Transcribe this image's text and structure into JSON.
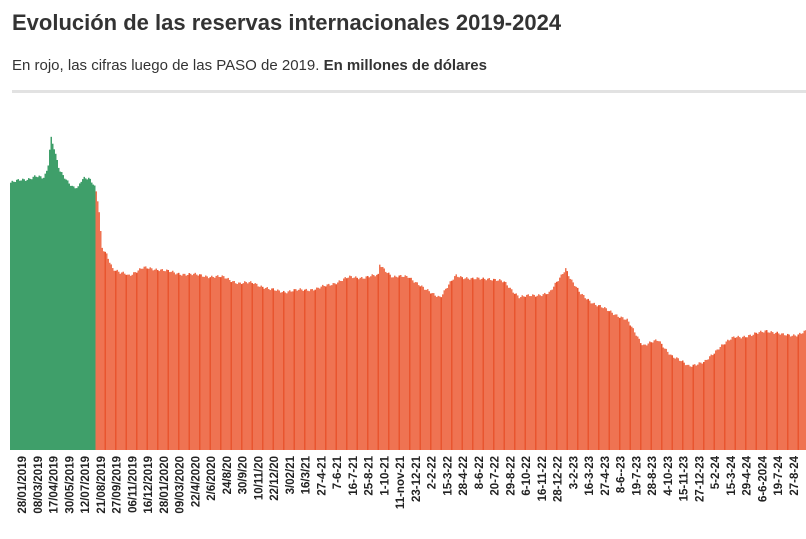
{
  "header": {
    "title": "Evolución de las reservas internacionales 2019-2024",
    "subtitle_plain": "En rojo, las cifras luego de las PASO de 2019.",
    "subtitle_bold": "En millones de dólares"
  },
  "colors": {
    "pre_paso": "#3f9f6a",
    "post_paso": "#ef7352",
    "post_paso_dark": "#e8552f",
    "rule": "#e2e2e2"
  },
  "chart_data": {
    "type": "bar",
    "title": "Evolución de las reservas internacionales 2019-2024",
    "ylabel": "En millones de dólares",
    "x_tick_labels": [
      "28/01/2019",
      "08/03/2019",
      "17/04/2019",
      "30/05/2019",
      "12/07/2019",
      "21/08/2019",
      "27/09/2019",
      "06/11/2019",
      "16/12/2019",
      "28/01/2020",
      "09/03/2020",
      "22/4/2020",
      "2/6/2020",
      "24/8/20",
      "30/9/20",
      "10/11/20",
      "22/12/20",
      "3/02/21",
      "16/3/21",
      "27-4-21",
      "7-6-21",
      "16-7-21",
      "25-8-21",
      "1-10-21",
      "11-nov-21",
      "23-12-21",
      "2-2-22",
      "15-3-22",
      "28-4-22",
      "8-6-22",
      "20-7-22",
      "29-8-22",
      "6-10-22",
      "16-11-22",
      "28-12-22",
      "3-2-23",
      "16-3-23",
      "27-4-23",
      "8-6--23",
      "19-7-23",
      "28-8-23",
      "4-10-23",
      "15-11-23",
      "27-12-23",
      "5-2-24",
      "15-3-24",
      "29-4-24",
      "6-6-2024",
      "19-7-24",
      "27-8-24"
    ],
    "series": [
      {
        "name": "",
        "color": "#3f9f6a",
        "x": [
          "2019-01-02",
          "2019-01-28",
          "2019-02-15",
          "2019-03-08",
          "2019-03-29",
          "2019-04-05",
          "2019-04-12",
          "2019-04-17",
          "2019-04-26",
          "2019-05-10",
          "2019-05-30",
          "2019-06-14",
          "2019-06-28",
          "2019-07-05",
          "2019-07-12",
          "2019-07-26",
          "2019-08-09"
        ],
        "values": [
          65800,
          66400,
          66700,
          67500,
          66800,
          68000,
          71000,
          77300,
          74500,
          69000,
          66000,
          64600,
          64800,
          66400,
          67100,
          66800,
          65000
        ]
      },
      {
        "name": "",
        "color": "#ef7352",
        "x": [
          "2019-08-13",
          "2019-08-21",
          "2019-08-29",
          "2019-09-10",
          "2019-09-27",
          "2019-10-15",
          "2019-10-31",
          "2019-11-06",
          "2019-12-16",
          "2020-01-28",
          "2020-03-09",
          "2020-04-22",
          "2020-06-02",
          "2020-07-15",
          "2020-08-24",
          "2020-09-30",
          "2020-11-10",
          "2020-12-22",
          "2021-02-03",
          "2021-03-16",
          "2021-04-27",
          "2021-06-07",
          "2021-07-16",
          "2021-08-25",
          "2021-08-26",
          "2021-10-01",
          "2021-11-11",
          "2021-12-23",
          "2022-02-02",
          "2022-03-15",
          "2022-04-28",
          "2022-06-08",
          "2022-07-20",
          "2022-08-29",
          "2022-10-06",
          "2022-11-16",
          "2022-12-28",
          "2023-01-10",
          "2023-02-03",
          "2023-03-16",
          "2023-04-27",
          "2023-06-08",
          "2023-07-19",
          "2023-08-28",
          "2023-10-04",
          "2023-11-15",
          "2023-12-27",
          "2024-02-05",
          "2024-03-15",
          "2024-04-29",
          "2024-06-06",
          "2024-07-19",
          "2024-08-27",
          "2024-09-20"
        ],
        "values": [
          64000,
          60000,
          50000,
          48500,
          44500,
          43500,
          43500,
          43000,
          44800,
          44500,
          43500,
          43200,
          42800,
          42500,
          41000,
          41200,
          39500,
          39000,
          39400,
          39700,
          41000,
          42500,
          42500,
          43000,
          45800,
          42500,
          42800,
          39500,
          37700,
          43000,
          42000,
          42300,
          41300,
          37600,
          38100,
          38600,
          44800,
          42000,
          38600,
          35800,
          34000,
          31800,
          25800,
          27000,
          23000,
          20800,
          21500,
          25500,
          27800,
          28200,
          29500,
          28300,
          28400,
          29200
        ]
      }
    ],
    "ylim": [
      0,
      80000
    ],
    "paso_date": "2019-08-11",
    "grid": false,
    "legend": "none"
  }
}
